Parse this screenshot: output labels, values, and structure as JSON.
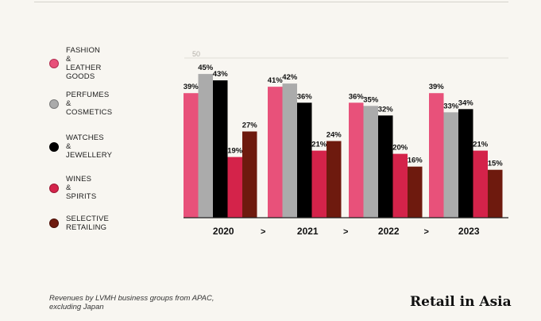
{
  "legend": {
    "items": [
      {
        "label": "FASHION &\nLEATHER GOODS",
        "color": "#e8517a",
        "ring": "#b22f52"
      },
      {
        "label": "PERFUMES\n& COSMETICS",
        "color": "#ababab",
        "ring": "#7b7b7b"
      },
      {
        "label": "WATCHES\n& JEWELLERY",
        "color": "#000000",
        "ring": "#000000"
      },
      {
        "label": "WINES & SPIRITS",
        "color": "#d4234a",
        "ring": "#9c1834"
      },
      {
        "label": "SELECTIVE RETAILING",
        "color": "#6e1a0e",
        "ring": "#4a0f07"
      }
    ]
  },
  "chart_data": {
    "type": "bar",
    "categories": [
      "2020",
      "2021",
      "2022",
      "2023"
    ],
    "category_separator": ">",
    "gridline_label": "50",
    "ylim": [
      0,
      50
    ],
    "series": [
      {
        "name": "FASHION & LEATHER GOODS",
        "color": "#e8517a",
        "values": [
          39,
          41,
          36,
          39
        ]
      },
      {
        "name": "PERFUMES & COSMETICS",
        "color": "#ababab",
        "values": [
          45,
          42,
          35,
          33
        ]
      },
      {
        "name": "WATCHES & JEWELLERY",
        "color": "#000000",
        "values": [
          43,
          36,
          32,
          34
        ]
      },
      {
        "name": "WINES & SPIRITS",
        "color": "#d4234a",
        "values": [
          19,
          21,
          20,
          21
        ]
      },
      {
        "name": "SELECTIVE RETAILING",
        "color": "#6e1a0e",
        "values": [
          27,
          24,
          16,
          15
        ]
      }
    ],
    "value_suffix": "%"
  },
  "footer": {
    "caption": "Revenues by LVMH business groups from APAC,\nexcluding Japan",
    "brand": "Retail in Asia"
  }
}
